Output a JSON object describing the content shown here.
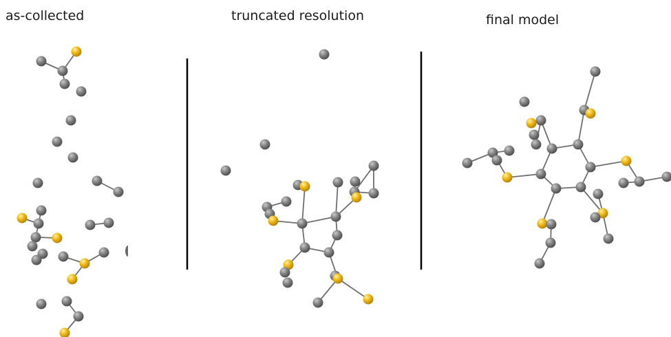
{
  "panels": [
    {
      "title": "as-collected"
    },
    {
      "title": "truncated resolution"
    },
    {
      "title": "final model"
    }
  ],
  "colors": {
    "carbon": "#7c7c7c",
    "sulfur": "#f2bd1d",
    "bond": "#6e6e6e",
    "divider": "#000000"
  },
  "atom_types": [
    "carbon-atom",
    "sulfur-atom"
  ]
}
